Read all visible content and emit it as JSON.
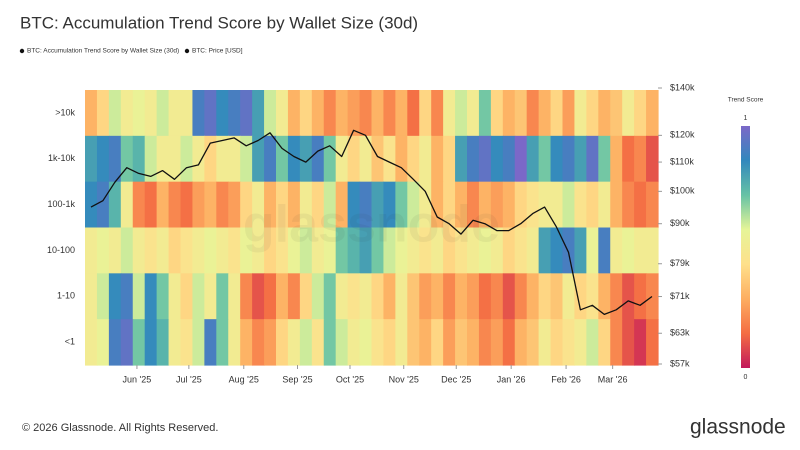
{
  "chart_data": {
    "type": "heatmap",
    "title": "BTC: Accumulation Trend Score by Wallet Size (30d)",
    "legend": [
      {
        "name": "BTC: Accumulation Trend Score by Wallet Size (30d)",
        "color": "#111111"
      },
      {
        "name": "BTC: Price [USD]",
        "color": "#111111"
      }
    ],
    "xlim": [
      0,
      48
    ],
    "xticks": [
      {
        "value": 4.35,
        "label": "Jun '25"
      },
      {
        "value": 8.7,
        "label": "Jul '25"
      },
      {
        "value": 13.3,
        "label": "Aug '25"
      },
      {
        "value": 17.8,
        "label": "Sep '25"
      },
      {
        "value": 22.2,
        "label": "Oct '25"
      },
      {
        "value": 26.7,
        "label": "Nov '25"
      },
      {
        "value": 31.1,
        "label": "Dec '25"
      },
      {
        "value": 35.7,
        "label": "Jan '26"
      },
      {
        "value": 40.3,
        "label": "Feb '26"
      },
      {
        "value": 44.2,
        "label": "Mar '26"
      }
    ],
    "rows": [
      {
        "name": ">10k",
        "values": [
          0.3,
          0.4,
          0.6,
          0.5,
          0.55,
          0.5,
          0.6,
          0.5,
          0.5,
          0.9,
          0.95,
          0.85,
          0.9,
          0.95,
          0.8,
          0.6,
          0.5,
          0.3,
          0.4,
          0.3,
          0.2,
          0.3,
          0.25,
          0.2,
          0.3,
          0.2,
          0.3,
          0.15,
          0.4,
          0.2,
          0.5,
          0.6,
          0.5,
          0.7,
          0.4,
          0.3,
          0.35,
          0.2,
          0.3,
          0.4,
          0.25,
          0.5,
          0.4,
          0.3,
          0.35,
          0.5,
          0.4,
          0.3
        ]
      },
      {
        "name": "1k-10k",
        "values": [
          0.8,
          0.85,
          0.9,
          0.7,
          0.75,
          0.6,
          0.5,
          0.5,
          0.6,
          0.5,
          0.4,
          0.5,
          0.5,
          0.6,
          0.8,
          0.9,
          0.7,
          0.85,
          0.8,
          0.9,
          0.7,
          0.5,
          0.4,
          0.5,
          0.35,
          0.45,
          0.3,
          0.4,
          0.5,
          0.3,
          0.4,
          0.8,
          0.9,
          0.95,
          0.85,
          0.9,
          1.0,
          0.8,
          0.7,
          0.85,
          0.9,
          0.8,
          0.95,
          0.7,
          0.3,
          0.15,
          0.2,
          0.1
        ]
      },
      {
        "name": "100-1k",
        "values": [
          0.85,
          0.9,
          0.75,
          0.5,
          0.2,
          0.15,
          0.3,
          0.2,
          0.15,
          0.25,
          0.3,
          0.2,
          0.25,
          0.4,
          0.5,
          0.3,
          0.4,
          0.3,
          0.5,
          0.4,
          0.6,
          0.3,
          0.85,
          0.9,
          0.8,
          0.85,
          0.7,
          0.6,
          0.5,
          0.3,
          0.4,
          0.3,
          0.2,
          0.3,
          0.25,
          0.3,
          0.4,
          0.45,
          0.5,
          0.5,
          0.6,
          0.45,
          0.4,
          0.5,
          0.3,
          0.2,
          0.15,
          0.2
        ]
      },
      {
        "name": "10-100",
        "values": [
          0.5,
          0.55,
          0.5,
          0.6,
          0.5,
          0.45,
          0.5,
          0.4,
          0.45,
          0.5,
          0.55,
          0.5,
          0.45,
          0.55,
          0.5,
          0.4,
          0.45,
          0.55,
          0.6,
          0.5,
          0.55,
          0.7,
          0.75,
          0.8,
          0.7,
          0.6,
          0.55,
          0.5,
          0.45,
          0.5,
          0.4,
          0.45,
          0.5,
          0.55,
          0.5,
          0.4,
          0.45,
          0.5,
          0.8,
          0.85,
          0.9,
          0.8,
          0.55,
          0.9,
          0.5,
          0.55,
          0.5,
          0.5
        ]
      },
      {
        "name": "1-10",
        "values": [
          0.5,
          0.6,
          0.85,
          0.9,
          0.6,
          0.85,
          0.7,
          0.5,
          0.4,
          0.6,
          0.5,
          0.7,
          0.5,
          0.2,
          0.1,
          0.15,
          0.3,
          0.2,
          0.4,
          0.6,
          0.7,
          0.5,
          0.45,
          0.5,
          0.4,
          0.3,
          0.5,
          0.35,
          0.25,
          0.3,
          0.2,
          0.3,
          0.25,
          0.15,
          0.2,
          0.1,
          0.2,
          0.3,
          0.4,
          0.35,
          0.5,
          0.4,
          0.45,
          0.3,
          0.2,
          0.1,
          0.15,
          0.2
        ]
      },
      {
        "name": "<1",
        "values": [
          0.5,
          0.55,
          0.9,
          0.95,
          0.7,
          0.85,
          0.75,
          0.5,
          0.45,
          0.6,
          0.9,
          0.7,
          0.5,
          0.3,
          0.2,
          0.25,
          0.4,
          0.5,
          0.6,
          0.45,
          0.7,
          0.6,
          0.5,
          0.55,
          0.45,
          0.4,
          0.5,
          0.35,
          0.3,
          0.4,
          0.25,
          0.35,
          0.3,
          0.2,
          0.25,
          0.15,
          0.3,
          0.35,
          0.5,
          0.4,
          0.45,
          0.5,
          0.6,
          0.4,
          0.2,
          0.1,
          0.05,
          0.15
        ]
      }
    ],
    "colorscale": [
      "#c2185b",
      "#f46d43",
      "#fdae61",
      "#fee08b",
      "#e6f598",
      "#66c2a5",
      "#3288bd",
      "#7b68c8"
    ],
    "colorbar_title": "Trend Score",
    "clim": [
      0,
      1
    ],
    "cticks": [
      0,
      1
    ],
    "price": {
      "name": "BTC: Price [USD]",
      "color": "#111111",
      "log_scale": true,
      "values": [
        95000,
        97000,
        103000,
        108000,
        106000,
        105000,
        107000,
        104000,
        108000,
        109000,
        117000,
        118000,
        119000,
        116000,
        118000,
        121000,
        115000,
        112000,
        110000,
        114000,
        116000,
        112000,
        122000,
        120000,
        112000,
        110000,
        108000,
        104000,
        100000,
        92000,
        90000,
        87000,
        91000,
        90000,
        88000,
        88000,
        90000,
        93000,
        95000,
        89000,
        82000,
        68000,
        69000,
        67000,
        68000,
        70000,
        69000,
        71000
      ]
    },
    "y2lim": [
      57000,
      140000
    ],
    "y2ticks": [
      {
        "value": 57000,
        "label": "$57k"
      },
      {
        "value": 63000,
        "label": "$63k"
      },
      {
        "value": 71000,
        "label": "$71k"
      },
      {
        "value": 79000,
        "label": "$79k"
      },
      {
        "value": 90000,
        "label": "$90k"
      },
      {
        "value": 100000,
        "label": "$100k"
      },
      {
        "value": 110000,
        "label": "$110k"
      },
      {
        "value": 120000,
        "label": "$120k"
      },
      {
        "value": 140000,
        "label": "$140k"
      }
    ],
    "watermark": "glassnode",
    "copyright": "© 2026 Glassnode. All Rights Reserved.",
    "brand": "glassnode"
  }
}
